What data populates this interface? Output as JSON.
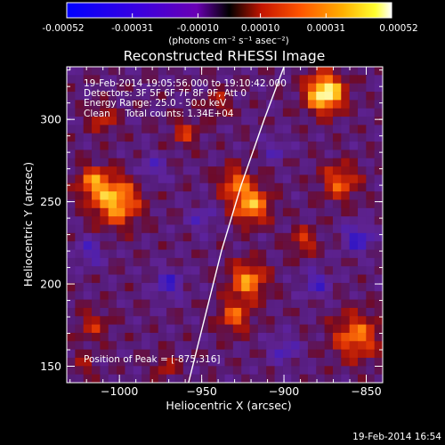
{
  "colorbar": {
    "tick_labels": [
      "-0.00052",
      "-0.00031",
      "-0.00010",
      "0.00010",
      "0.00031",
      "0.00052"
    ],
    "tick_values": [
      -0.00052,
      -0.00031,
      -0.0001,
      0.0001,
      0.00031,
      0.00052
    ],
    "range": [
      -0.00052,
      0.00052
    ],
    "units_label": "(photons cm⁻² s⁻¹ asec⁻²)",
    "colors": [
      "#0000ff",
      "#5a00c8",
      "#000000",
      "#d11a00",
      "#ff7a00",
      "#ffff00",
      "#ffffff"
    ]
  },
  "chart_data": {
    "type": "heatmap",
    "title": "Reconstructed RHESSI Image",
    "xlabel": "Heliocentric X (arcsec)",
    "ylabel": "Heliocentric Y (arcsec)",
    "xlim": [
      -1032,
      -840
    ],
    "ylim": [
      140,
      332
    ],
    "xticks": [
      -1000,
      -950,
      -900,
      -850
    ],
    "yticks": [
      150,
      200,
      250,
      300
    ],
    "xtick_labels": [
      "−1000",
      "−950",
      "−900",
      "−850"
    ],
    "ytick_labels": [
      "150",
      "200",
      "250",
      "300"
    ],
    "annotations": [
      "19-Feb-2014 19:05:56.000 to 19:10:42.000",
      "Detectors: 3F 5F 6F 7F 8F 9F, Att 0",
      "Energy Range: 25.0 - 50.0 keV",
      "Clean     Total counts: 1.34E+04"
    ],
    "peak_label": "Position of Peak = [-875,316]",
    "peak": [
      -875,
      316
    ],
    "limb_curve": [
      [
        -958,
        140
      ],
      [
        -948,
        180
      ],
      [
        -938,
        220
      ],
      [
        -926,
        260
      ],
      [
        -912,
        300
      ],
      [
        -900,
        332
      ]
    ],
    "sources": [
      {
        "x": -875,
        "y": 316,
        "sigma": 8,
        "amp": 1.0
      },
      {
        "x": -1002,
        "y": 250,
        "sigma": 10,
        "amp": 0.72
      },
      {
        "x": -1016,
        "y": 262,
        "sigma": 7,
        "amp": 0.5
      },
      {
        "x": -920,
        "y": 248,
        "sigma": 8,
        "amp": 0.68
      },
      {
        "x": -930,
        "y": 262,
        "sigma": 7,
        "amp": 0.45
      },
      {
        "x": -922,
        "y": 202,
        "sigma": 8,
        "amp": 0.62
      },
      {
        "x": -930,
        "y": 180,
        "sigma": 7,
        "amp": 0.48
      },
      {
        "x": -866,
        "y": 262,
        "sigma": 8,
        "amp": 0.48
      },
      {
        "x": -856,
        "y": 168,
        "sigma": 10,
        "amp": 0.55
      },
      {
        "x": -888,
        "y": 226,
        "sigma": 6,
        "amp": 0.38
      },
      {
        "x": -1010,
        "y": 300,
        "sigma": 6,
        "amp": 0.35
      },
      {
        "x": -960,
        "y": 292,
        "sigma": 6,
        "amp": 0.35
      },
      {
        "x": -1016,
        "y": 175,
        "sigma": 7,
        "amp": 0.3
      },
      {
        "x": -972,
        "y": 150,
        "sigma": 5,
        "amp": 0.32
      },
      {
        "x": -1022,
        "y": 150,
        "sigma": 5,
        "amp": 0.25
      },
      {
        "x": -940,
        "y": 310,
        "sigma": 6,
        "amp": 0.28
      },
      {
        "x": -970,
        "y": 200,
        "sigma": 6,
        "amp": -0.38
      },
      {
        "x": -1018,
        "y": 220,
        "sigma": 6,
        "amp": -0.3
      },
      {
        "x": -880,
        "y": 200,
        "sigma": 6,
        "amp": -0.32
      },
      {
        "x": -855,
        "y": 228,
        "sigma": 6,
        "amp": -0.45
      },
      {
        "x": -900,
        "y": 160,
        "sigma": 6,
        "amp": -0.3
      },
      {
        "x": -980,
        "y": 270,
        "sigma": 6,
        "amp": -0.28
      },
      {
        "x": -950,
        "y": 240,
        "sigma": 6,
        "amp": -0.25
      },
      {
        "x": -905,
        "y": 282,
        "sigma": 5,
        "amp": -0.25
      }
    ]
  },
  "footer": {
    "timestamp": "19-Feb-2014 16:54"
  }
}
